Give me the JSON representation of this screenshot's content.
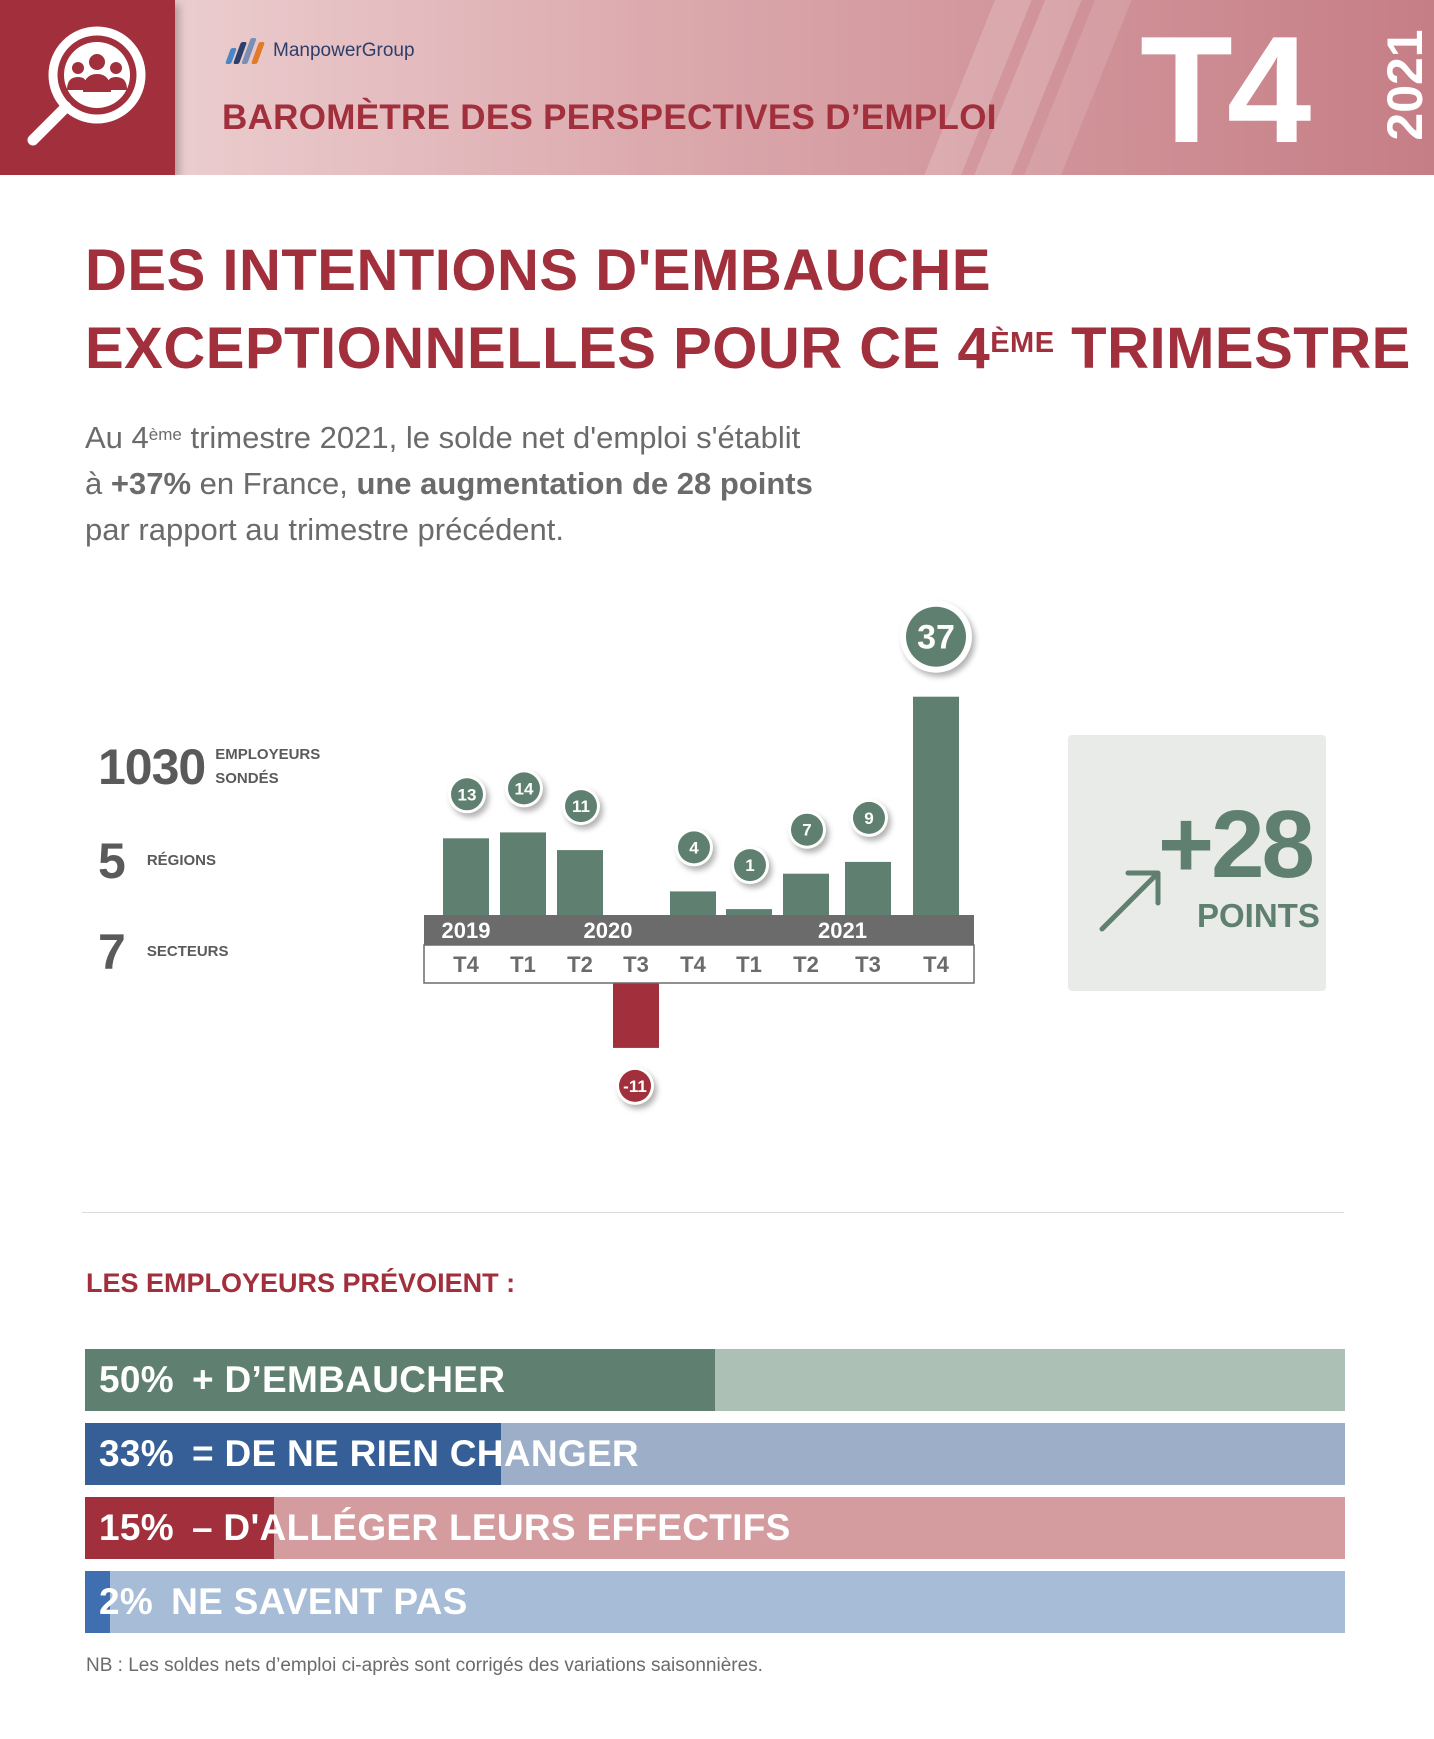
{
  "header": {
    "brand": "ManpowerGroup",
    "title": "BAROMÈTRE DES PERSPECTIVES D’EMPLOI",
    "quarter": "T4",
    "year": "2021",
    "icon": "search-people-icon"
  },
  "headline": {
    "line1": "DES INTENTIONS D'EMBAUCHE",
    "line2_pre": "EXCEPTIONNELLES POUR CE 4",
    "line2_sup": "ÈME",
    "line2_post": " TRIMESTRE"
  },
  "intro": {
    "p1_pre": "Au 4",
    "p1_sup": "ème",
    "p1_post": " trimestre 2021, le solde net d'emploi s'établit",
    "p2_pre": "à ",
    "p2_bold1": "+37%",
    "p2_mid": " en France, ",
    "p2_bold2": "une augmentation de 28 points",
    "p3": "par rapport au trimestre précédent."
  },
  "stats": [
    {
      "value": "1030",
      "label_1": "EMPLOYEURS",
      "label_2": "SONDÉS"
    },
    {
      "value": "5",
      "label_1": "RÉGIONS",
      "label_2": ""
    },
    {
      "value": "7",
      "label_1": "SECTEURS",
      "label_2": ""
    }
  ],
  "chart_data": {
    "type": "bar",
    "categories": [
      "T4",
      "T1",
      "T2",
      "T3",
      "T4",
      "T1",
      "T2",
      "T3",
      "T4"
    ],
    "years": [
      {
        "label": "2019",
        "from": 0,
        "to": 0
      },
      {
        "label": "2020",
        "from": 1,
        "to": 4
      },
      {
        "label": "2021",
        "from": 5,
        "to": 8
      }
    ],
    "values": [
      13,
      14,
      11,
      -11,
      4,
      1,
      7,
      9,
      37
    ],
    "colors": {
      "positive": "#5f8070",
      "negative": "#a12f3c",
      "axis": "#6b6b6b"
    }
  },
  "delta": {
    "value": "+28",
    "label": "POINTS",
    "icon": "arrow-up-right-icon"
  },
  "employers": {
    "title": "LES EMPLOYEURS PRÉVOIENT :",
    "bars": [
      {
        "pct_value": 50,
        "pct": "50%",
        "text": "+ D’EMBAUCHER",
        "color": "#5f8070",
        "track": "#adc0b6"
      },
      {
        "pct_value": 33,
        "pct": "33%",
        "text": "= DE NE RIEN CHANGER",
        "color": "#355f96",
        "track": "#9caec8"
      },
      {
        "pct_value": 15,
        "pct": "15%",
        "text": "– D'ALLÉGER LEURS EFFECTIFS",
        "color": "#a12f3c",
        "track": "#d59ca0"
      },
      {
        "pct_value": 2,
        "pct": "2%",
        "text": "NE SAVENT PAS",
        "color": "#3f6fb0",
        "track": "#a7bcd6"
      }
    ]
  },
  "note": "NB : Les soldes nets d’emploi ci-après sont corrigés des variations saisonnières."
}
